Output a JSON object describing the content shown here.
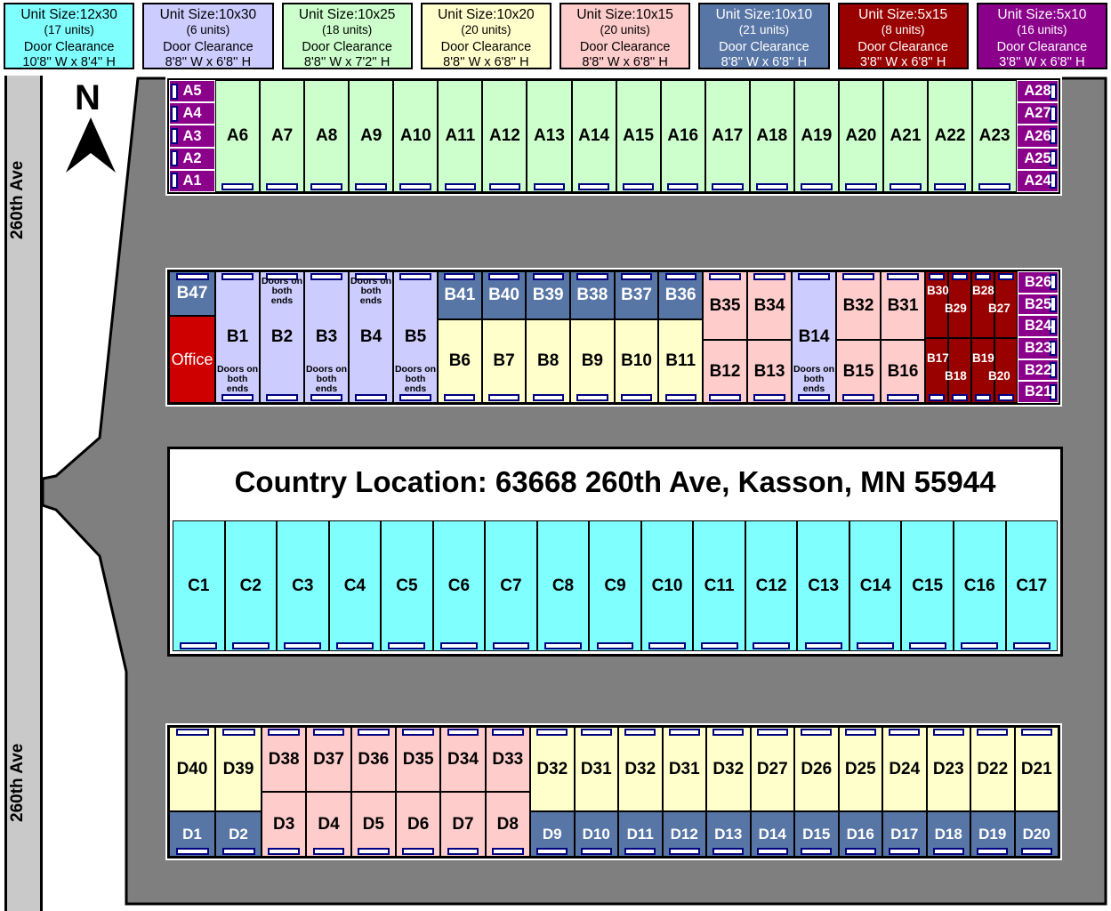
{
  "colors": {
    "cyan": "#80FFFF",
    "lavender": "#CCCCFF",
    "green": "#CCFFCC",
    "yellow": "#FFFFCC",
    "pink": "#FFCCCC",
    "steelblue": "#5775A5",
    "darkred": "#990000",
    "purple": "#8B008B",
    "office": "#CE0000",
    "road": "#C9C9C9",
    "facility": "#7F7F7F",
    "door": "#000080"
  },
  "legend": [
    {
      "size": "Unit Size:12x30",
      "units": "(17 units)",
      "clearance_label": "Door Clearance",
      "clearance": "10'8'' W  x  8'4'' H",
      "bg": "#80FFFF",
      "fg": "#000000"
    },
    {
      "size": "Unit Size:10x30",
      "units": "(6 units)",
      "clearance_label": "Door Clearance",
      "clearance": "8'8'' W  x  6'8'' H",
      "bg": "#CCCCFF",
      "fg": "#000000"
    },
    {
      "size": "Unit Size:10x25",
      "units": "(18 units)",
      "clearance_label": "Door Clearance",
      "clearance": "8'8'' W  x  7'2'' H",
      "bg": "#CCFFCC",
      "fg": "#000000"
    },
    {
      "size": "Unit Size:10x20",
      "units": "(20 units)",
      "clearance_label": "Door Clearance",
      "clearance": "8'8'' W  x  6'8'' H",
      "bg": "#FFFFCC",
      "fg": "#000000"
    },
    {
      "size": "Unit Size:10x15",
      "units": "(20 units)",
      "clearance_label": "Door Clearance",
      "clearance": "8'8'' W  x  6'8'' H",
      "bg": "#FFCCCC",
      "fg": "#000000"
    },
    {
      "size": "Unit Size:10x10",
      "units": "(21 units)",
      "clearance_label": "Door Clearance",
      "clearance": "8'8'' W  x  6'8'' H",
      "bg": "#5775A5",
      "fg": "#FFFFFF"
    },
    {
      "size": "Unit Size:5x15",
      "units": "(8 units)",
      "clearance_label": "Door Clearance",
      "clearance": "3'8'' W  x  6'8'' H",
      "bg": "#990000",
      "fg": "#FFFFFF"
    },
    {
      "size": "Unit Size:5x10",
      "units": "(16 units)",
      "clearance_label": "Door Clearance",
      "clearance": "3'8'' W  x  6'8'' H",
      "bg": "#8B008B",
      "fg": "#FFFFFF"
    }
  ],
  "map": {
    "street_label": "260th Ave",
    "north_label": "N",
    "address": "Country Location: 63668 260th Ave, Kasson, MN 55944"
  },
  "rows": {
    "a_left": [
      "A5",
      "A4",
      "A3",
      "A2",
      "A1"
    ],
    "a_green": [
      "A6",
      "A7",
      "A8",
      "A9",
      "A10",
      "A11",
      "A12",
      "A13",
      "A14",
      "A15",
      "A16",
      "A17",
      "A18",
      "A19",
      "A20",
      "A21",
      "A22",
      "A23"
    ],
    "a_right": [
      "A28",
      "A27",
      "A26",
      "A25",
      "A24"
    ],
    "b47": "B47",
    "office": "Office",
    "b_lavender": [
      {
        "label": "B1",
        "note_bottom": "Doors on both ends"
      },
      {
        "label": "B2",
        "note_top": "Doors on both ends"
      },
      {
        "label": "B3",
        "note_bottom": "Doors on both ends"
      },
      {
        "label": "B4",
        "note_top": "Doors on both ends"
      },
      {
        "label": "B5",
        "note_bottom": "Doors on both ends"
      }
    ],
    "b_blue_top": [
      "B41",
      "B40",
      "B39",
      "B38",
      "B37",
      "B36"
    ],
    "b_yellow": [
      "B6",
      "B7",
      "B8",
      "B9",
      "B10",
      "B11"
    ],
    "b_pink_left_top": [
      "B35",
      "B34"
    ],
    "b_pink_left_bottom": [
      "B12",
      "B13"
    ],
    "b14": {
      "label": "B14",
      "note_bottom": "Doors on both ends"
    },
    "b_pink_right_top": [
      "B32",
      "B31"
    ],
    "b_pink_right_bottom": [
      "B15",
      "B16"
    ],
    "b_red_top": [
      "B30",
      "B29",
      "B28",
      "B27"
    ],
    "b_red_bottom": [
      "B17",
      "B18",
      "B19",
      "B20"
    ],
    "b_purple_right": [
      "B26",
      "B25",
      "B24",
      "B23",
      "B22",
      "B21"
    ],
    "c": [
      "C1",
      "C2",
      "C3",
      "C4",
      "C5",
      "C6",
      "C7",
      "C8",
      "C9",
      "C10",
      "C11",
      "C12",
      "C13",
      "C14",
      "C15",
      "C16",
      "C17"
    ],
    "d_yellow_left": [
      "D40",
      "D39"
    ],
    "d_blue_left": [
      "D1",
      "D2"
    ],
    "d_pink_top": [
      "D38",
      "D37",
      "D36",
      "D35",
      "D34",
      "D33"
    ],
    "d_pink_bottom": [
      "D3",
      "D4",
      "D5",
      "D6",
      "D7",
      "D8"
    ],
    "d_yellow_right": [
      "D32",
      "D31",
      "D32",
      "D31",
      "D32",
      "D27",
      "D26",
      "D25",
      "D24",
      "D23",
      "D22",
      "D21"
    ],
    "d_blue_right": [
      "D9",
      "D10",
      "D11",
      "D12",
      "D13",
      "D14",
      "D15",
      "D16",
      "D17",
      "D18",
      "D19",
      "D20"
    ]
  }
}
